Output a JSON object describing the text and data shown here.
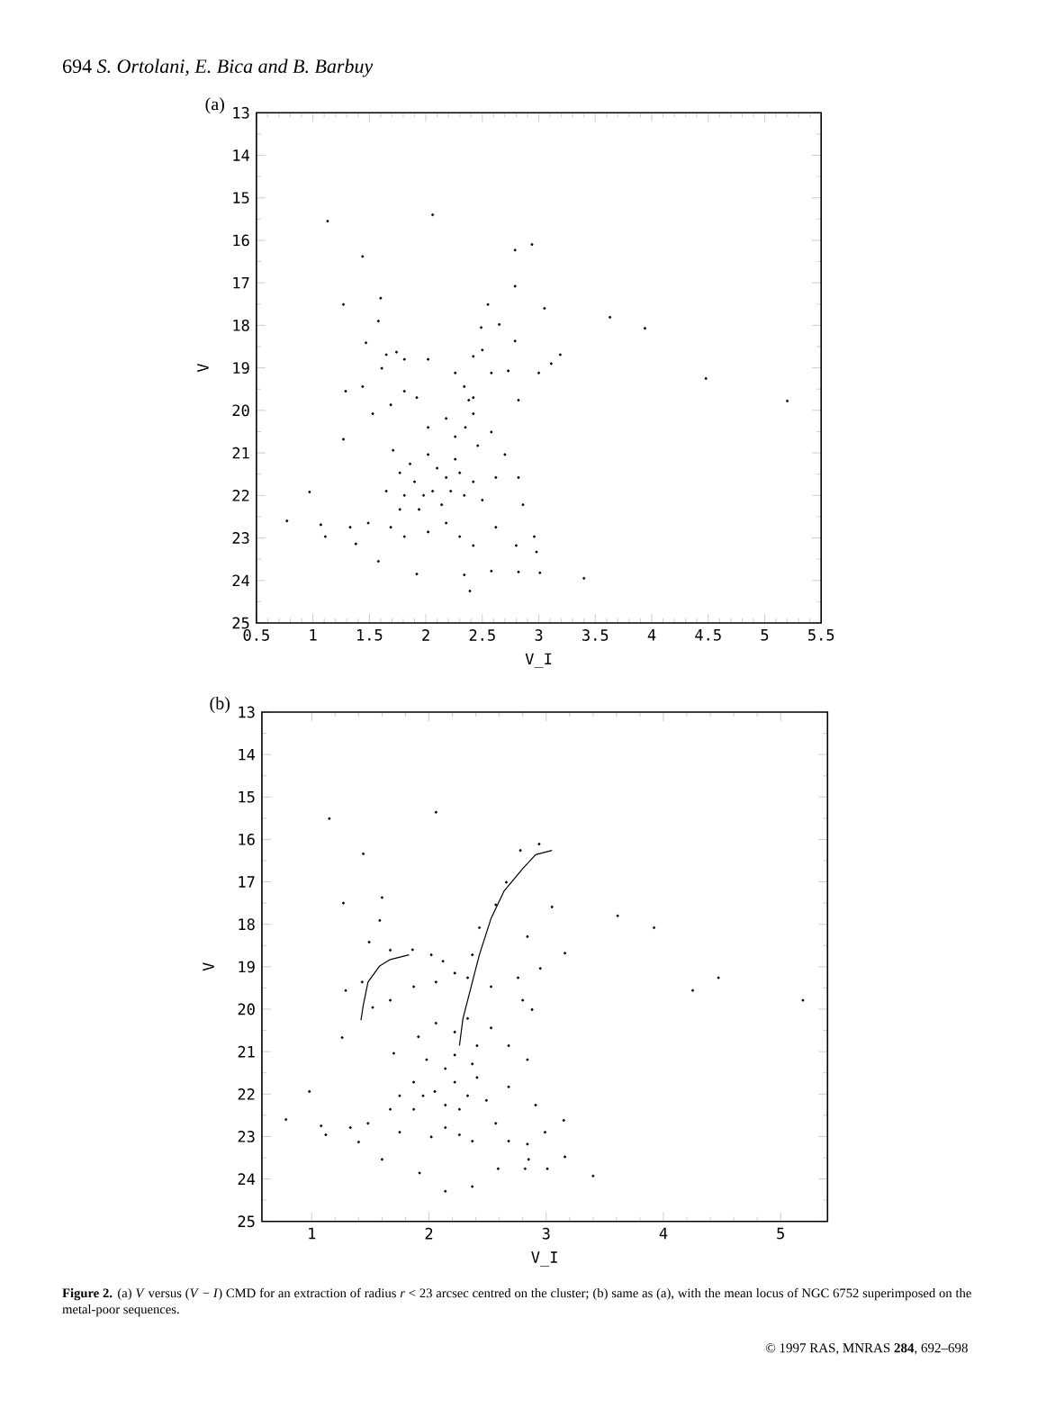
{
  "chart_data": [
    {
      "type": "scatter",
      "title": "(a)",
      "xlabel": "V_I",
      "ylabel": "V",
      "xlim": [
        0.5,
        5.5
      ],
      "ylim": [
        25,
        13
      ],
      "xticks": [
        0.5,
        1,
        1.5,
        2,
        2.5,
        3,
        3.5,
        4,
        4.5,
        5,
        5.5
      ],
      "yticks": [
        13,
        14,
        15,
        16,
        17,
        18,
        19,
        20,
        21,
        22,
        23,
        24,
        25
      ],
      "grid": false,
      "annotations": [
        "694 *S. Ortolani, E. Bica and B. Barbuy*"
      ],
      "series": [
        {
          "color": "#000000",
          "marker": "circle",
          "x": [
            1.13,
            2.06,
            1.44,
            2.79,
            2.94,
            1.27,
            1.6,
            2.55,
            2.79,
            3.63,
            3.94,
            3.05,
            1.58,
            2.49,
            2.65,
            2.79,
            1.47,
            1.65,
            1.81,
            1.74,
            1.61,
            2.02,
            2.42,
            2.5,
            3.19,
            3.11,
            1.29,
            1.44,
            1.53,
            1.69,
            1.81,
            1.92,
            2.26,
            2.34,
            2.42,
            2.58,
            2.73,
            2.82,
            3.0,
            4.48,
            5.2,
            1.27,
            1.71,
            1.86,
            2.02,
            2.18,
            2.26,
            2.35,
            2.46,
            2.58,
            2.7,
            2.02,
            2.1,
            2.18,
            2.26,
            1.9,
            1.98,
            2.06,
            2.14,
            2.22,
            1.81,
            1.77,
            1.65,
            1.94,
            2.34,
            2.42,
            2.5,
            2.62,
            2.82,
            2.86,
            0.97,
            0.77,
            1.07,
            1.11,
            1.33,
            1.38,
            1.49,
            1.69,
            1.81,
            2.02,
            2.18,
            2.3,
            2.42,
            2.62,
            2.8,
            2.96,
            2.98,
            1.58,
            1.92,
            2.34,
            2.39,
            2.58,
            2.82,
            3.01,
            3.4,
            1.77,
            2.3,
            2.42,
            2.38
          ],
          "values": [
            15.55,
            15.4,
            16.38,
            16.23,
            16.1,
            17.51,
            17.36,
            17.51,
            17.08,
            17.81,
            18.07,
            17.6,
            17.9,
            18.05,
            17.98,
            18.37,
            18.41,
            18.69,
            18.8,
            18.63,
            19.01,
            18.8,
            18.73,
            18.58,
            18.69,
            18.9,
            19.55,
            19.44,
            20.08,
            19.87,
            19.55,
            19.7,
            19.12,
            19.44,
            19.7,
            19.12,
            19.07,
            19.76,
            19.12,
            19.25,
            19.78,
            20.68,
            20.94,
            21.26,
            20.4,
            20.19,
            20.62,
            20.4,
            20.83,
            20.51,
            21.04,
            21.04,
            21.36,
            21.58,
            21.15,
            21.68,
            22.0,
            21.9,
            22.22,
            21.9,
            22.0,
            22.33,
            21.9,
            22.33,
            22.0,
            21.68,
            22.11,
            21.58,
            21.58,
            22.22,
            21.92,
            22.6,
            22.69,
            22.97,
            22.75,
            23.14,
            22.65,
            22.75,
            22.97,
            22.86,
            22.65,
            22.97,
            23.18,
            22.75,
            23.18,
            22.97,
            23.33,
            23.55,
            23.85,
            23.87,
            24.25,
            23.78,
            23.8,
            23.82,
            23.95,
            21.47,
            21.47,
            20.08,
            19.76
          ]
        }
      ]
    },
    {
      "type": "scatter",
      "title": "(b)",
      "xlabel": "V_I",
      "ylabel": "V",
      "xlim": [
        0.575,
        5.4
      ],
      "ylim": [
        25,
        13
      ],
      "xticks": [
        1,
        2,
        3,
        4,
        5
      ],
      "yticks": [
        13,
        14,
        15,
        16,
        17,
        18,
        19,
        20,
        21,
        22,
        23,
        24,
        25
      ],
      "grid": false,
      "annotations": [
        "**Figure 2.** (a) *V* versus (*V* − *I*) CMD for an extraction of radius *r* < 23 arcsec centred on the cluster; (b) same as (a), with the mean locus of NGC 6752 superimposed on the metal-poor sequences.",
        "© 1997 RAS, MNRAS **284**, 692–698"
      ],
      "series": [
        {
          "color": "#000000",
          "marker": "circle",
          "x": [
            1.15,
            2.06,
            1.44,
            2.78,
            2.94,
            1.27,
            1.6,
            2.66,
            2.57,
            3.05,
            3.61,
            3.92,
            1.58,
            2.43,
            2.84,
            1.49,
            1.67,
            1.86,
            2.02,
            2.12,
            2.37,
            3.16,
            2.95,
            1.29,
            1.43,
            1.52,
            1.67,
            1.87,
            2.06,
            2.22,
            2.33,
            2.53,
            2.76,
            2.8,
            2.88,
            4.25,
            4.47,
            5.19,
            1.26,
            1.7,
            1.91,
            2.06,
            2.22,
            2.33,
            2.41,
            2.53,
            2.68,
            2.84,
            1.98,
            2.14,
            2.22,
            1.87,
            1.95,
            2.05,
            2.14,
            2.22,
            1.75,
            1.67,
            1.87,
            2.33,
            2.41,
            2.49,
            2.68,
            2.91,
            0.98,
            0.78,
            1.08,
            1.12,
            1.33,
            1.4,
            1.48,
            1.6,
            1.75,
            1.92,
            2.02,
            2.14,
            2.26,
            2.37,
            2.57,
            2.68,
            2.84,
            2.85,
            2.99,
            3.15,
            3.16,
            2.14,
            2.37,
            2.59,
            2.82,
            3.01,
            3.4,
            2.26,
            2.37
          ],
          "values": [
            15.51,
            15.36,
            16.34,
            16.26,
            16.11,
            17.5,
            17.37,
            17.01,
            17.54,
            17.59,
            17.8,
            18.08,
            17.91,
            18.08,
            18.29,
            18.42,
            18.61,
            18.6,
            18.72,
            18.87,
            18.72,
            18.68,
            19.04,
            19.56,
            19.36,
            19.96,
            19.79,
            19.47,
            19.36,
            19.15,
            19.26,
            19.47,
            19.26,
            19.79,
            20.01,
            19.56,
            19.26,
            19.79,
            20.67,
            21.04,
            20.65,
            20.33,
            20.54,
            20.22,
            20.86,
            20.44,
            20.86,
            21.19,
            21.19,
            21.4,
            21.08,
            21.72,
            22.04,
            21.94,
            22.26,
            21.72,
            22.04,
            22.36,
            22.36,
            22.04,
            21.61,
            22.15,
            21.83,
            22.26,
            21.94,
            22.6,
            22.75,
            22.96,
            22.79,
            23.13,
            22.69,
            23.54,
            22.9,
            23.86,
            23.01,
            22.79,
            22.96,
            23.11,
            22.69,
            23.11,
            23.18,
            23.54,
            22.9,
            22.62,
            23.48,
            24.29,
            24.18,
            23.76,
            23.76,
            23.76,
            23.93,
            22.36,
            21.29
          ]
        },
        {
          "type": "line",
          "marker": "none",
          "color": "#000000",
          "x": [
            2.26,
            2.29,
            2.33,
            2.43,
            2.53,
            2.64,
            2.8,
            2.91,
            3.05
          ],
          "values": [
            20.86,
            20.22,
            19.79,
            18.72,
            17.86,
            17.22,
            16.69,
            16.36,
            16.26
          ]
        },
        {
          "type": "line",
          "marker": "none",
          "color": "#000000",
          "x": [
            1.42,
            1.44,
            1.48,
            1.58,
            1.67,
            1.83
          ],
          "values": [
            20.26,
            19.9,
            19.36,
            18.98,
            18.83,
            18.72
          ]
        }
      ]
    }
  ]
}
